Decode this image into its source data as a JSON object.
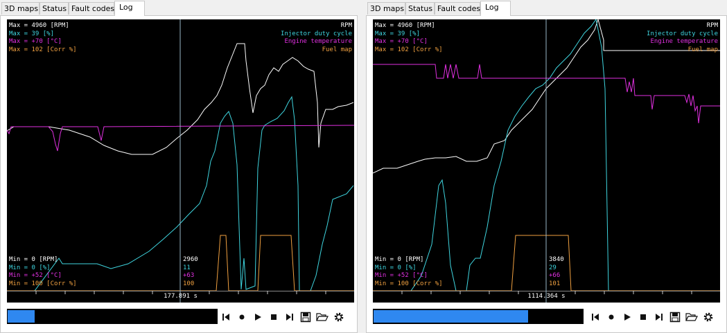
{
  "panels": [
    {
      "tabs": [
        "3D maps",
        "Status",
        "Fault codes",
        "Log"
      ],
      "active_tab": "Log",
      "legend_max": [
        "Max = 4960 [RPM]",
        "Max = 39 [%]",
        "Max = +70 [°C]",
        "Max = 102 [Corr %]"
      ],
      "legend_names": [
        "RPM",
        "Injector duty cycle",
        "Engine temperature",
        "Fuel map"
      ],
      "legend_min": [
        "Min = 0 [RPM]",
        "Min = 0 [%]",
        "Min = +52 [°C]",
        "Min = 100 [Corr %]"
      ],
      "cursor_values": [
        "2960",
        "11",
        "+63",
        "100"
      ],
      "time": "177.891 s",
      "progress": 0.13
    },
    {
      "tabs": [
        "3D maps",
        "Status",
        "Fault codes",
        "Log"
      ],
      "active_tab": "Log",
      "legend_max": [
        "Max = 4960 [RPM]",
        "Max = 39 [%]",
        "Max = +70 [°C]",
        "Max = 102 [Corr %]"
      ],
      "legend_names": [
        "RPM",
        "Injector duty cycle",
        "Engine temperature",
        "Fuel map"
      ],
      "legend_min": [
        "Min = 0 [RPM]",
        "Min = 0 [%]",
        "Min = +52 [°C]",
        "Min = 100 [Corr %]"
      ],
      "cursor_values": [
        "3840",
        "29",
        "+66",
        "101"
      ],
      "time": "1114.364 s",
      "progress": 0.74
    }
  ],
  "colors": {
    "rpm": "#ffffff",
    "injector": "#3fd6e0",
    "temp": "#e030e0",
    "fuel": "#f0a040",
    "progress": "#2f88f0"
  },
  "controls": [
    "skip-start-icon",
    "record-icon",
    "play-icon",
    "stop-icon",
    "skip-end-icon",
    "save-icon",
    "open-folder-icon",
    "settings-icon"
  ]
}
